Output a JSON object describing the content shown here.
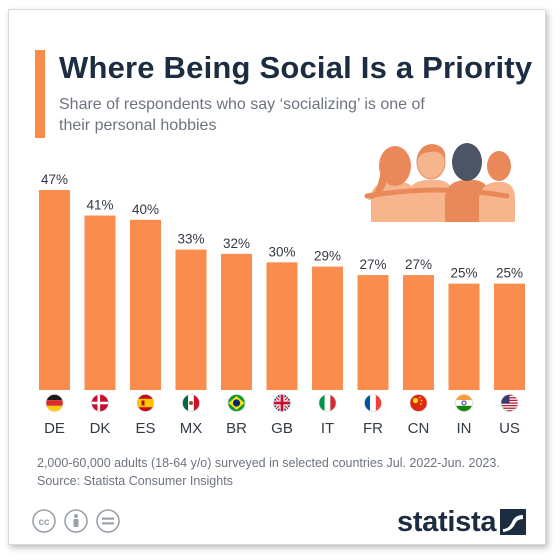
{
  "header": {
    "title": "Where Being Social Is a Priority",
    "subtitle": "Share of respondents who say ‘socializing’ is one of their personal hobbies"
  },
  "chart_data": {
    "type": "bar",
    "title": "Where Being Social Is a Priority",
    "subtitle": "Share of respondents who say ‘socializing’ is one of their personal hobbies",
    "categories": [
      "DE",
      "DK",
      "ES",
      "MX",
      "BR",
      "GB",
      "IT",
      "FR",
      "CN",
      "IN",
      "US"
    ],
    "values": [
      47,
      41,
      40,
      33,
      32,
      30,
      29,
      27,
      27,
      25,
      25
    ],
    "value_labels": [
      "47%",
      "41%",
      "40%",
      "33%",
      "32%",
      "30%",
      "29%",
      "27%",
      "27%",
      "25%",
      "25%"
    ],
    "unit": "%",
    "ylim": [
      0,
      47
    ],
    "grid": false,
    "legend": "none",
    "bar_color": "#fa8c4e"
  },
  "flags": [
    {
      "code": "DE",
      "icon": "germany-flag-icon"
    },
    {
      "code": "DK",
      "icon": "denmark-flag-icon"
    },
    {
      "code": "ES",
      "icon": "spain-flag-icon"
    },
    {
      "code": "MX",
      "icon": "mexico-flag-icon"
    },
    {
      "code": "BR",
      "icon": "brazil-flag-icon"
    },
    {
      "code": "GB",
      "icon": "uk-flag-icon"
    },
    {
      "code": "IT",
      "icon": "italy-flag-icon"
    },
    {
      "code": "FR",
      "icon": "france-flag-icon"
    },
    {
      "code": "CN",
      "icon": "china-flag-icon"
    },
    {
      "code": "IN",
      "icon": "india-flag-icon"
    },
    {
      "code": "US",
      "icon": "usa-flag-icon"
    }
  ],
  "footer": {
    "note": "2,000-60,000 adults (18-64 y/o) surveyed in selected countries Jul. 2022-Jun. 2023.",
    "source": "Source: Statista Consumer Insights",
    "brand": "statista",
    "license_icons": [
      "creative-commons-icon",
      "attribution-icon",
      "no-derivatives-icon"
    ]
  },
  "colors": {
    "accent": "#fa8c4e",
    "title": "#1c2c41",
    "muted": "#6c7480",
    "illustration_light": "#f7b58e",
    "illustration_mid": "#e9895a",
    "illustration_dark": "#4b5565"
  }
}
